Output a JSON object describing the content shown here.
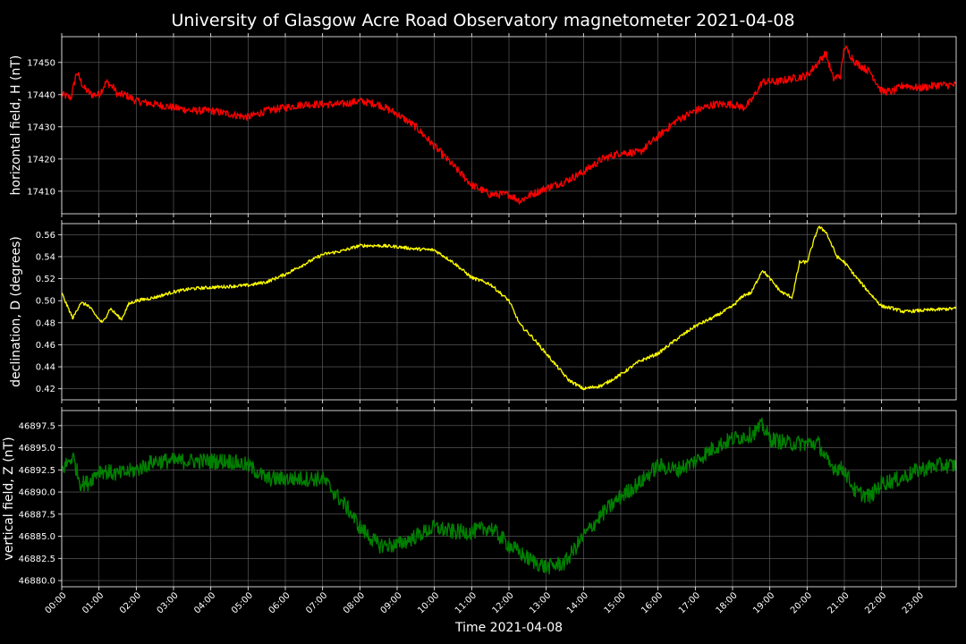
{
  "chart_data": {
    "title": "University of Glasgow Acre Road Observatory magnetometer 2021-04-08",
    "xlabel": "Time 2021-04-08",
    "x_ticks": [
      "00:00",
      "01:00",
      "02:00",
      "03:00",
      "04:00",
      "05:00",
      "06:00",
      "07:00",
      "08:00",
      "09:00",
      "10:00",
      "11:00",
      "12:00",
      "13:00",
      "14:00",
      "15:00",
      "16:00",
      "17:00",
      "18:00",
      "19:00",
      "20:00",
      "21:00",
      "22:00",
      "23:00"
    ],
    "xlim_hours": [
      0,
      24
    ],
    "grid": true,
    "panels": [
      {
        "type": "line",
        "name": "H",
        "ylabel": "horizontal field, H (nT)",
        "color": "#ff0000",
        "ylim": [
          17403,
          17458
        ],
        "y_ticks": [
          "17410",
          "17420",
          "17430",
          "17440",
          "17450"
        ],
        "y_tick_values": [
          17410,
          17420,
          17430,
          17440,
          17450
        ],
        "noise": 1.2,
        "x": [
          0,
          0.25,
          0.4,
          0.6,
          0.8,
          1.0,
          1.2,
          1.4,
          1.5,
          1.7,
          2.0,
          2.5,
          3.0,
          3.5,
          4.0,
          4.5,
          5.0,
          5.5,
          6.0,
          6.5,
          7.0,
          7.5,
          8.0,
          8.5,
          9.0,
          9.5,
          10.0,
          10.5,
          11.0,
          11.5,
          12.0,
          12.3,
          12.6,
          13.0,
          13.5,
          14.0,
          14.5,
          15.0,
          15.5,
          16.0,
          16.5,
          17.0,
          17.5,
          18.0,
          18.3,
          18.5,
          18.8,
          19.2,
          19.6,
          20.0,
          20.3,
          20.5,
          20.7,
          20.9,
          21.0,
          21.3,
          21.7,
          22.0,
          22.3,
          22.6,
          23.0,
          23.5,
          24.0
        ],
        "y": [
          17440,
          17439,
          17447,
          17442,
          17440,
          17440,
          17444,
          17442,
          17440,
          17440,
          17438,
          17437,
          17436,
          17435,
          17435,
          17434,
          17433,
          17435,
          17436,
          17437,
          17437,
          17437,
          17438,
          17437,
          17434,
          17430,
          17424,
          17418,
          17412,
          17409,
          17409,
          17407,
          17409,
          17411,
          17413,
          17416,
          17420,
          17422,
          17422,
          17427,
          17432,
          17435,
          17437,
          17437,
          17436,
          17438,
          17444,
          17444,
          17445,
          17446,
          17450,
          17453,
          17445,
          17446,
          17455,
          17450,
          17447,
          17441,
          17441,
          17443,
          17442,
          17443,
          17443
        ]
      },
      {
        "type": "line",
        "name": "D",
        "ylabel": "declination, D (degrees)",
        "color": "#ffff00",
        "ylim": [
          0.41,
          0.57
        ],
        "y_ticks": [
          "0.42",
          "0.44",
          "0.46",
          "0.48",
          "0.50",
          "0.52",
          "0.54",
          "0.56"
        ],
        "y_tick_values": [
          0.42,
          0.44,
          0.46,
          0.48,
          0.5,
          0.52,
          0.54,
          0.56
        ],
        "noise": 0.0015,
        "x": [
          0,
          0.15,
          0.3,
          0.5,
          0.7,
          1.0,
          1.1,
          1.3,
          1.6,
          1.8,
          2.0,
          2.5,
          3.0,
          3.5,
          4.0,
          4.5,
          5.0,
          5.5,
          6.0,
          6.5,
          7.0,
          7.5,
          8.0,
          8.5,
          9.0,
          9.5,
          10.0,
          10.5,
          11.0,
          11.5,
          12.0,
          12.3,
          12.6,
          13.0,
          13.3,
          13.6,
          14.0,
          14.5,
          15.0,
          15.5,
          16.0,
          16.5,
          17.0,
          17.5,
          18.0,
          18.3,
          18.5,
          18.8,
          19.0,
          19.3,
          19.6,
          19.8,
          20.0,
          20.3,
          20.5,
          20.8,
          21.0,
          21.3,
          21.6,
          22.0,
          22.3,
          22.6,
          23.0,
          23.5,
          24.0
        ],
        "y": [
          0.507,
          0.495,
          0.484,
          0.498,
          0.496,
          0.483,
          0.48,
          0.493,
          0.483,
          0.497,
          0.5,
          0.503,
          0.508,
          0.511,
          0.512,
          0.513,
          0.514,
          0.517,
          0.524,
          0.533,
          0.542,
          0.545,
          0.55,
          0.55,
          0.549,
          0.547,
          0.546,
          0.535,
          0.521,
          0.515,
          0.5,
          0.478,
          0.468,
          0.452,
          0.44,
          0.428,
          0.42,
          0.423,
          0.433,
          0.445,
          0.452,
          0.465,
          0.477,
          0.485,
          0.495,
          0.505,
          0.507,
          0.528,
          0.52,
          0.508,
          0.503,
          0.535,
          0.535,
          0.567,
          0.563,
          0.54,
          0.535,
          0.522,
          0.51,
          0.495,
          0.493,
          0.49,
          0.491,
          0.492,
          0.493
        ]
      },
      {
        "type": "line",
        "name": "Z",
        "ylabel": "vertical field, Z (nT)",
        "color": "#008000",
        "ylim": [
          46879.3,
          46899.2
        ],
        "y_ticks": [
          "46880.0",
          "46882.5",
          "46885.0",
          "46887.5",
          "46890.0",
          "46892.5",
          "46895.0",
          "46897.5"
        ],
        "y_tick_values": [
          46880.0,
          46882.5,
          46885.0,
          46887.5,
          46890.0,
          46892.5,
          46895.0,
          46897.5
        ],
        "noise": 0.9,
        "x": [
          0,
          0.3,
          0.5,
          0.7,
          1.0,
          1.5,
          2.0,
          2.5,
          3.0,
          3.5,
          4.0,
          4.5,
          5.0,
          5.5,
          6.0,
          6.5,
          7.0,
          7.3,
          7.7,
          8.0,
          8.5,
          9.0,
          9.5,
          10.0,
          10.5,
          11.0,
          11.5,
          12.0,
          12.5,
          13.0,
          13.5,
          14.0,
          14.5,
          15.0,
          15.5,
          16.0,
          16.5,
          17.0,
          17.5,
          18.0,
          18.5,
          18.8,
          19.0,
          19.5,
          20.0,
          20.3,
          20.6,
          21.0,
          21.3,
          21.7,
          22.0,
          22.5,
          23.0,
          23.5,
          24.0
        ],
        "y": [
          46892.5,
          46894,
          46891,
          46891,
          46892.5,
          46892,
          46892.5,
          46893.5,
          46893.5,
          46893.5,
          46893.5,
          46893.5,
          46893,
          46891.5,
          46891.5,
          46891.5,
          46891.5,
          46890,
          46888,
          46886,
          46884,
          46884,
          46885,
          46886,
          46885.5,
          46885.5,
          46886,
          46884,
          46882.5,
          46881.5,
          46882,
          46885,
          46887.5,
          46889.5,
          46891,
          46893,
          46892.5,
          46893.5,
          46895,
          46896,
          46896.5,
          46897.5,
          46896,
          46895.5,
          46895.5,
          46895.5,
          46893,
          46892.5,
          46890,
          46889.5,
          46891,
          46891.5,
          46892.5,
          46893,
          46893
        ]
      }
    ]
  }
}
